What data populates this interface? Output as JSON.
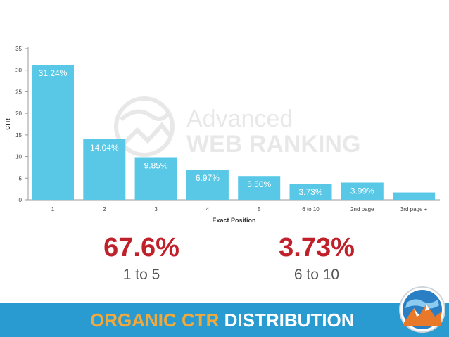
{
  "chart_data": {
    "type": "bar",
    "categories": [
      "1",
      "2",
      "3",
      "4",
      "5",
      "6 to 10",
      "2nd page",
      "3rd page +"
    ],
    "values": [
      31.24,
      14.04,
      9.85,
      6.97,
      5.5,
      3.73,
      3.99,
      1.7
    ],
    "data_labels": [
      "31.24%",
      "14.04%",
      "9.85%",
      "6.97%",
      "5.50%",
      "3.73%",
      "3.99%",
      ""
    ],
    "xlabel": "Exact Position",
    "ylabel": "CTR",
    "ylim": [
      0,
      35
    ],
    "yticks": [
      "0",
      "5",
      "10",
      "15",
      "20",
      "25",
      "30",
      "35"
    ],
    "grid": false,
    "bar_color": "#59c8e6"
  },
  "watermark": {
    "line1": "Advanced",
    "line2": "WEB RANKING"
  },
  "stats": [
    {
      "value": "67.6%",
      "label": "1 to 5"
    },
    {
      "value": "3.73%",
      "label": "6 to 10"
    }
  ],
  "banner": {
    "part1": "ORGANIC CTR",
    "part2": "DISTRIBUTION"
  },
  "colors": {
    "stat_value": "#c0202a",
    "banner_bg": "#2a9bd1",
    "banner_accent": "#f2a93b",
    "banner_text": "#ffffff"
  },
  "icons": {
    "banner_logo": "globe-mountain-icon",
    "watermark_logo": "globe-watermark-icon"
  }
}
